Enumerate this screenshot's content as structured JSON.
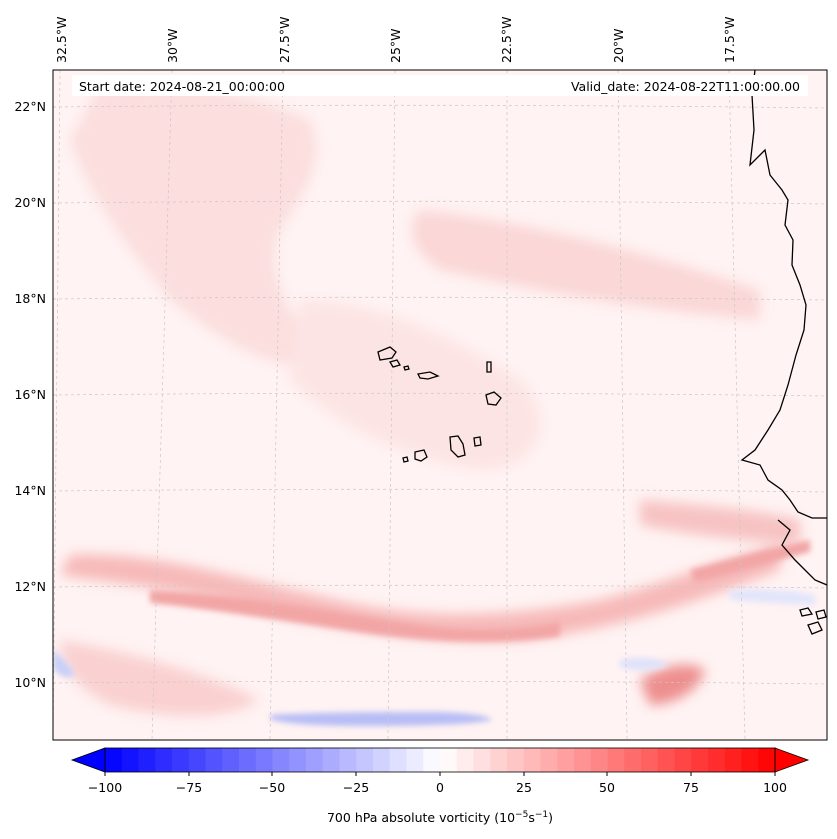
{
  "map": {
    "start_label": "Start date: 2024-08-21_00:00:00",
    "valid_label": "Valid_date: 2024-08-22T11:00:00.00",
    "lon_labels": [
      "32.5°W",
      "30°W",
      "27.5°W",
      "25°W",
      "22.5°W",
      "20°W",
      "17.5°W"
    ],
    "lat_labels": [
      "22°N",
      "20°N",
      "18°N",
      "16°N",
      "14°N",
      "12°N",
      "10°N"
    ],
    "field": "700 hPa absolute vorticity",
    "colors": {
      "coastline": "#000000",
      "gridline": "#c8c8c8",
      "positive": "#ff0000",
      "negative": "#0000ff",
      "neutral": "#ffffff"
    }
  },
  "colorbar": {
    "label": "700 hPa absolute vorticity (10",
    "label_exp1": "−5",
    "label_mid": "s",
    "label_exp2": "−1",
    "label_end": ")",
    "ticks": [
      "−100",
      "−75",
      "−50",
      "−25",
      "0",
      "25",
      "50",
      "75",
      "100"
    ],
    "min": -100,
    "max": 100,
    "levels": 40
  }
}
